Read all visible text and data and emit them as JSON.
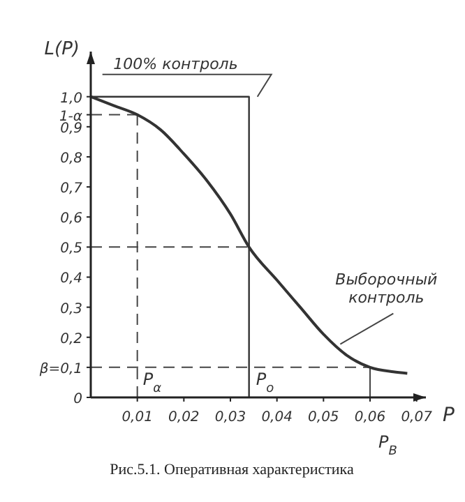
{
  "chart_data": {
    "type": "line",
    "xlabel": "P",
    "ylabel": "L(P)",
    "xlim": [
      0,
      0.072
    ],
    "ylim": [
      0,
      1.15
    ],
    "xticks": [
      {
        "value": 0.01,
        "label": "0,01"
      },
      {
        "value": 0.02,
        "label": "0,02"
      },
      {
        "value": 0.03,
        "label": "0,03"
      },
      {
        "value": 0.04,
        "label": "0,04"
      },
      {
        "value": 0.05,
        "label": "0,05"
      },
      {
        "value": 0.06,
        "label": "0,06"
      },
      {
        "value": 0.07,
        "label": "0,07"
      }
    ],
    "yticks": [
      {
        "value": 0,
        "label": "0"
      },
      {
        "value": 0.1,
        "label": "β=0,1"
      },
      {
        "value": 0.2,
        "label": "0,2"
      },
      {
        "value": 0.3,
        "label": "0,3"
      },
      {
        "value": 0.4,
        "label": "0,4"
      },
      {
        "value": 0.5,
        "label": "0,5"
      },
      {
        "value": 0.6,
        "label": "0,6"
      },
      {
        "value": 0.7,
        "label": "0,7"
      },
      {
        "value": 0.8,
        "label": "0,8"
      },
      {
        "value": 0.9,
        "label": "0,9"
      },
      {
        "value": 0.94,
        "label": "1-α"
      },
      {
        "value": 1.0,
        "label": "1,0"
      }
    ],
    "series": [
      {
        "name": "100% контроль",
        "type": "step",
        "color": "#333333",
        "x": [
          0,
          0.034,
          0.034
        ],
        "values": [
          1.0,
          1.0,
          0
        ]
      },
      {
        "name": "Выборочный контроль",
        "color": "#333333",
        "x": [
          0,
          0.005,
          0.01,
          0.015,
          0.02,
          0.025,
          0.03,
          0.034,
          0.04,
          0.045,
          0.05,
          0.055,
          0.06,
          0.065,
          0.068
        ],
        "values": [
          1.0,
          0.97,
          0.94,
          0.89,
          0.81,
          0.72,
          0.61,
          0.5,
          0.39,
          0.3,
          0.21,
          0.14,
          0.1,
          0.085,
          0.08
        ]
      }
    ],
    "ref_lines": [
      {
        "axis": "y",
        "value": 0.94,
        "line_style": "dashed",
        "color": "#444444"
      },
      {
        "axis": "y",
        "value": 0.5,
        "line_style": "dashed",
        "color": "#444444"
      },
      {
        "axis": "y",
        "value": 0.1,
        "line_style": "dashed",
        "color": "#444444"
      },
      {
        "axis": "x",
        "value": 0.01,
        "label": "P$_{α}$",
        "line_style": "dashed",
        "color": "#444444"
      },
      {
        "axis": "x",
        "value": 0.06,
        "label": "P$_{В}$",
        "line_style": "solid",
        "color": "#444444"
      }
    ],
    "annotations": [
      {
        "text": "P$_{o}$",
        "x": 0.034,
        "y": 0
      },
      "Рис.5.1. Оперативная характеристика"
    ],
    "grid": false,
    "line_style": "solid",
    "marker": "none"
  }
}
